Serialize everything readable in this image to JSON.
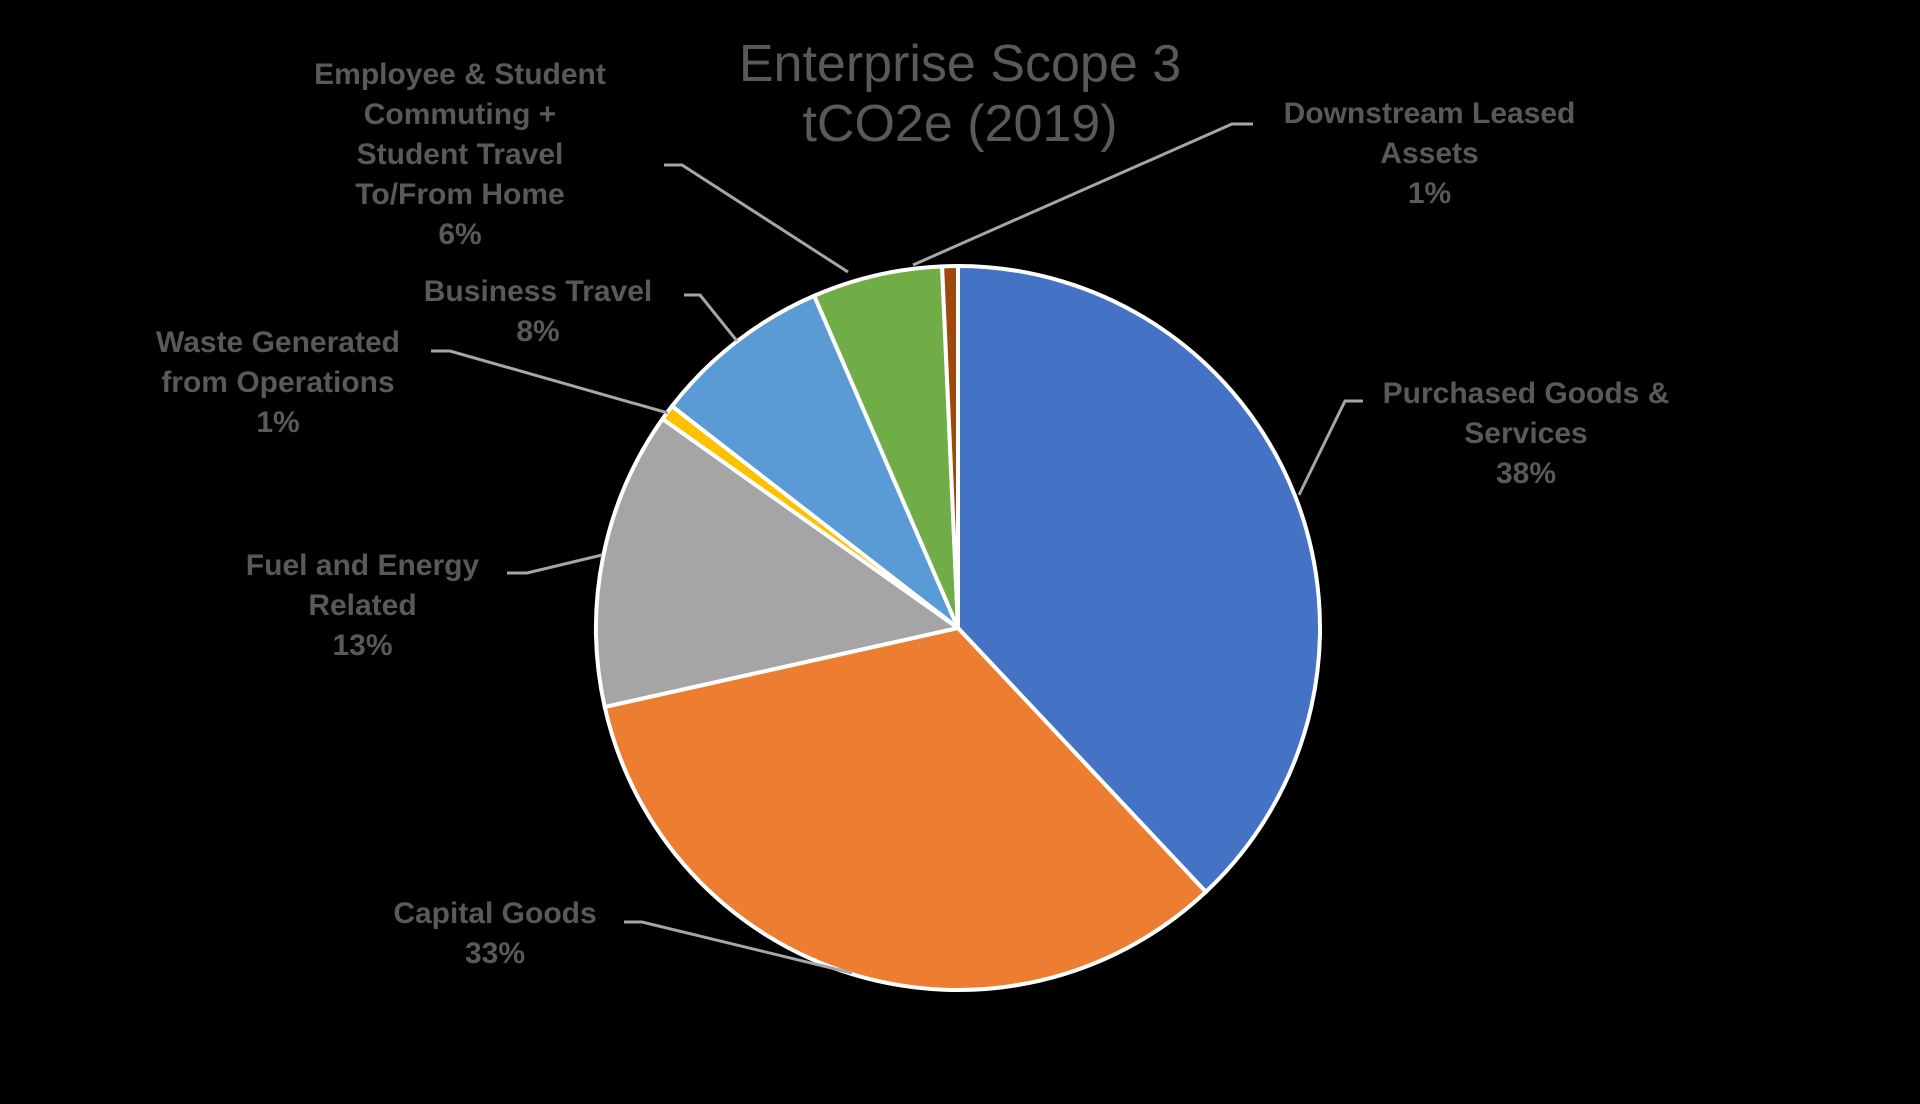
{
  "chart_data": {
    "type": "pie",
    "title": "Enterprise Scope 3 tCO2e (2019)",
    "title_lines": [
      "Enterprise Scope 3",
      "tCO2e (2019)"
    ],
    "start_angle_deg": 0,
    "direction": "clockwise",
    "slices": [
      {
        "name": "Purchased Goods & Services",
        "label_lines": [
          "Purchased Goods &",
          "Services"
        ],
        "percent_label": "38%",
        "value": 38.0,
        "color": "#4472C4"
      },
      {
        "name": "Capital Goods",
        "label_lines": [
          "Capital Goods"
        ],
        "percent_label": "33%",
        "value": 33.5,
        "color": "#ED7D31"
      },
      {
        "name": "Fuel and Energy Related",
        "label_lines": [
          "Fuel and Energy",
          "Related"
        ],
        "percent_label": "13%",
        "value": 13.3,
        "color": "#A5A5A5"
      },
      {
        "name": "Waste Generated from Operations",
        "label_lines": [
          "Waste Generated",
          "from Operations"
        ],
        "percent_label": "1%",
        "value": 0.7,
        "color": "#FFC000"
      },
      {
        "name": "Business Travel",
        "label_lines": [
          "Business Travel"
        ],
        "percent_label": "8%",
        "value": 8.0,
        "color": "#5B9BD5"
      },
      {
        "name": "Employee & Student Commuting + Student Travel To/From Home",
        "label_lines": [
          "Employee & Student",
          "Commuting +",
          "Student Travel",
          "To/From Home"
        ],
        "percent_label": "6%",
        "value": 5.8,
        "color": "#70AD47"
      },
      {
        "name": "Downstream Leased Assets",
        "label_lines": [
          "Downstream Leased",
          "Assets"
        ],
        "percent_label": "1%",
        "value": 0.7,
        "color": "#9E480E"
      }
    ],
    "legend": "none",
    "data_labels": "category name and percentage with leader lines"
  },
  "style": {
    "background": "#000000",
    "text_color": "#595959",
    "leader_line_color": "#A6A6A6",
    "slice_border_color": "#FFFFFF"
  }
}
